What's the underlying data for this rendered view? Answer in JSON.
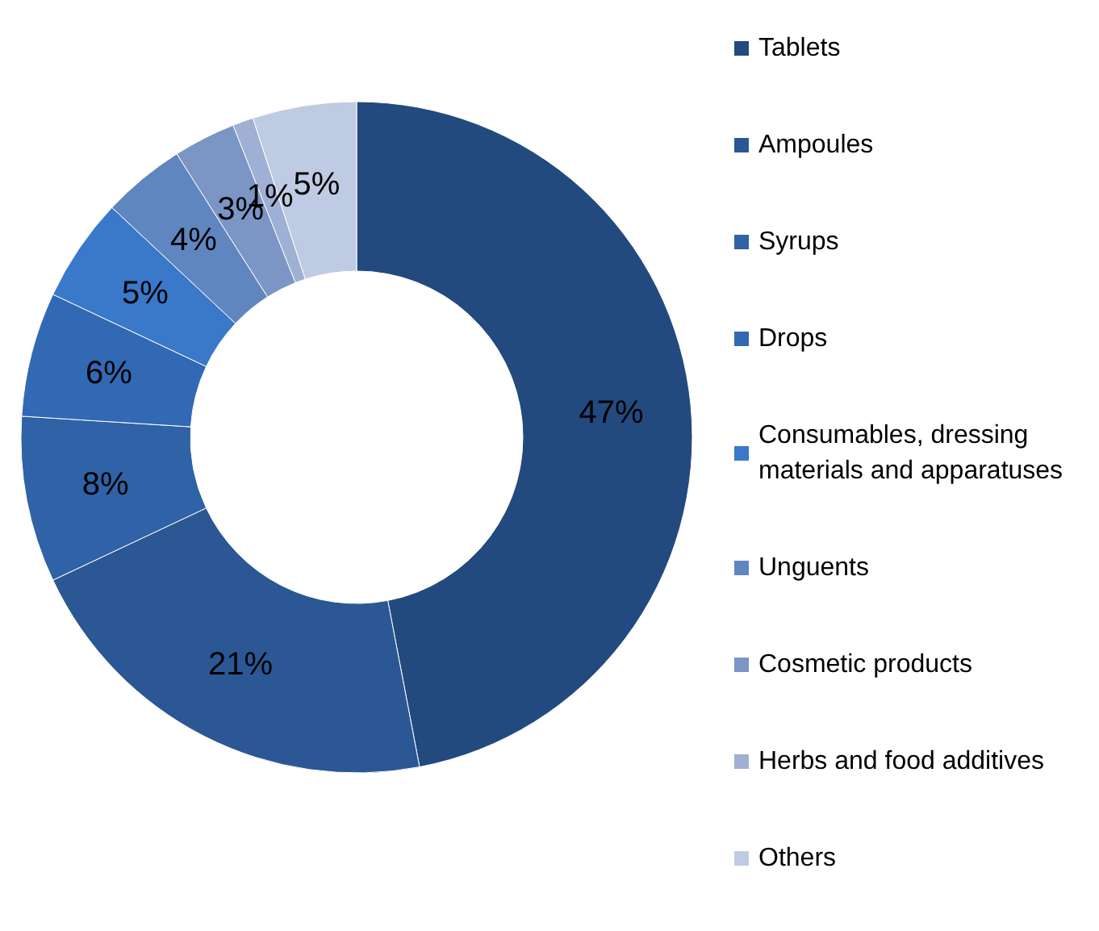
{
  "chart_data": {
    "type": "donut",
    "categories": [
      "Tablets",
      "Ampoules",
      "Syrups",
      "Drops",
      "Consumables, dressing materials and apparatuses",
      "Unguents",
      "Cosmetic products",
      "Herbs and food additives",
      "Others"
    ],
    "values": [
      47,
      21,
      8,
      6,
      5,
      4,
      3,
      1,
      5
    ],
    "value_labels": [
      "47%",
      "21%",
      "8%",
      "6%",
      "5%",
      "4%",
      "3%",
      "1%",
      "5%"
    ],
    "colors": [
      "#234a7f",
      "#2b5794",
      "#2f62a6",
      "#3169b4",
      "#3a78c9",
      "#6086c0",
      "#7b95c4",
      "#9fb0d4",
      "#bfcbe2"
    ],
    "legend": "right"
  }
}
